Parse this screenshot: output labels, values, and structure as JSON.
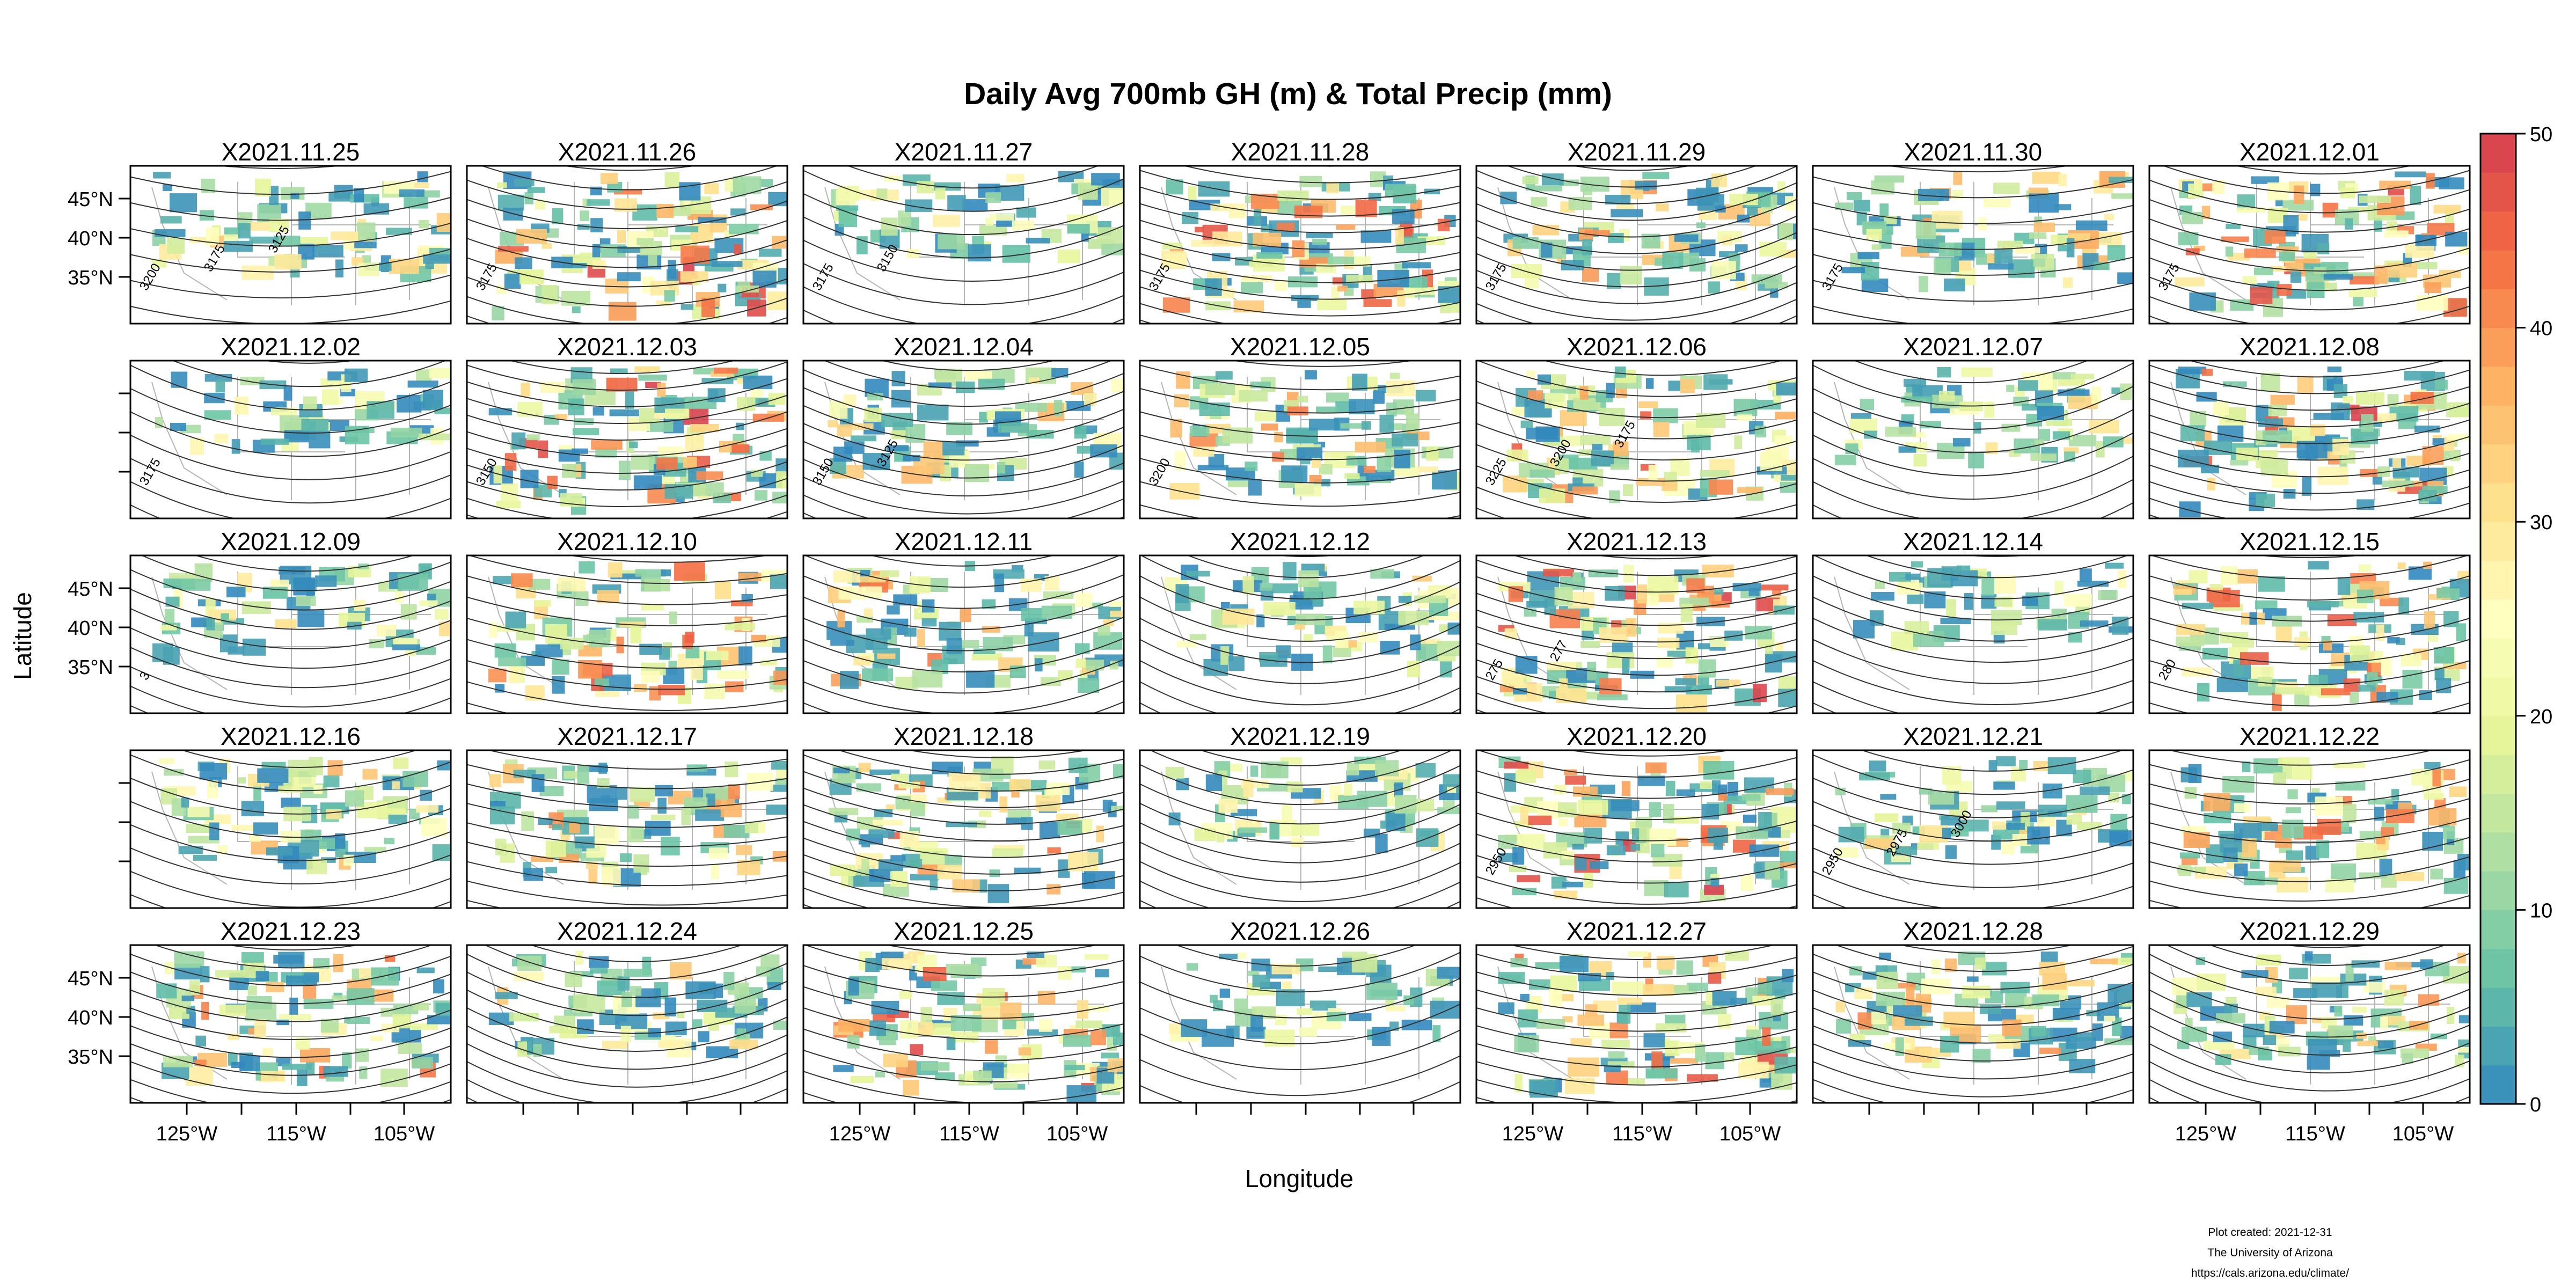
{
  "figure": {
    "title": "Daily Avg 700mb GH (m) & Total Precip (mm)",
    "xlabel": "Longitude",
    "ylabel": "Latitude",
    "lat_ticks": [
      "45°N",
      "40°N",
      "35°N"
    ],
    "lon_ticks": [
      "125°W",
      "115°W",
      "105°W"
    ],
    "credits": [
      "Plot created: 2021-12-31",
      "The University of Arizona",
      "https://cals.arizona.edu/climate/"
    ]
  },
  "colorbar": {
    "min": 0,
    "max": 50,
    "ticks": [
      "0",
      "10",
      "20",
      "30",
      "40",
      "50"
    ],
    "colors": [
      "#3288bd",
      "#66c2a5",
      "#abdda4",
      "#e6f598",
      "#ffffbf",
      "#fee08b",
      "#fdae61",
      "#f46d43",
      "#d53e4f"
    ]
  },
  "panels": [
    {
      "date": "X2021.11.25",
      "contours": [
        "3200",
        "3175",
        "3125"
      ]
    },
    {
      "date": "X2021.11.26",
      "contours": [
        "3175"
      ]
    },
    {
      "date": "X2021.11.27",
      "contours": [
        "3175",
        "3150"
      ]
    },
    {
      "date": "X2021.11.28",
      "contours": [
        "3175"
      ]
    },
    {
      "date": "X2021.11.29",
      "contours": [
        "3175"
      ]
    },
    {
      "date": "X2021.11.30",
      "contours": [
        "3175"
      ]
    },
    {
      "date": "X2021.12.01",
      "contours": [
        "3175"
      ]
    },
    {
      "date": "X2021.12.02",
      "contours": [
        "3175"
      ]
    },
    {
      "date": "X2021.12.03",
      "contours": [
        "3150"
      ]
    },
    {
      "date": "X2021.12.04",
      "contours": [
        "3150",
        "3125"
      ]
    },
    {
      "date": "X2021.12.05",
      "contours": [
        "3200"
      ]
    },
    {
      "date": "X2021.12.06",
      "contours": [
        "3225",
        "3200",
        "3175"
      ]
    },
    {
      "date": "X2021.12.07",
      "contours": []
    },
    {
      "date": "X2021.12.08",
      "contours": []
    },
    {
      "date": "X2021.12.09",
      "contours": [
        "3"
      ]
    },
    {
      "date": "X2021.12.10",
      "contours": []
    },
    {
      "date": "X2021.12.11",
      "contours": []
    },
    {
      "date": "X2021.12.12",
      "contours": []
    },
    {
      "date": "X2021.12.13",
      "contours": [
        "275",
        "277"
      ]
    },
    {
      "date": "X2021.12.14",
      "contours": []
    },
    {
      "date": "X2021.12.15",
      "contours": [
        "280"
      ]
    },
    {
      "date": "X2021.12.16",
      "contours": []
    },
    {
      "date": "X2021.12.17",
      "contours": []
    },
    {
      "date": "X2021.12.18",
      "contours": []
    },
    {
      "date": "X2021.12.19",
      "contours": []
    },
    {
      "date": "X2021.12.20",
      "contours": [
        "2950"
      ]
    },
    {
      "date": "X2021.12.21",
      "contours": [
        "2950",
        "2975",
        "3000"
      ]
    },
    {
      "date": "X2021.12.22",
      "contours": []
    },
    {
      "date": "X2021.12.23",
      "contours": []
    },
    {
      "date": "X2021.12.24",
      "contours": []
    },
    {
      "date": "X2021.12.25",
      "contours": []
    },
    {
      "date": "X2021.12.26",
      "contours": []
    },
    {
      "date": "X2021.12.27",
      "contours": []
    },
    {
      "date": "X2021.12.28",
      "contours": []
    },
    {
      "date": "X2021.12.29",
      "contours": []
    }
  ]
}
